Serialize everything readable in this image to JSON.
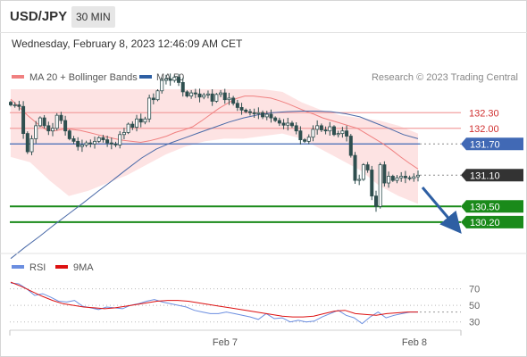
{
  "header": {
    "symbol": "USD/JPY",
    "interval": "30 MIN"
  },
  "datetime": "Wednesday, February 8, 2023 12:46:09 AM CET",
  "legend": {
    "ma20": "MA 20 + Bollinger Bands",
    "ma50": "MA 50",
    "rsi": "RSI",
    "ma9": "9MA",
    "credit": "Research © 2023 Trading Central"
  },
  "colors": {
    "bollinger_band": "#fcd9d9",
    "ma20": "#f08080",
    "ma50": "#4a6aa8",
    "candle": "#2f4f4f",
    "pivot": "#4169b5",
    "resistance": "#f2a0a0",
    "support": "#1a8a1a",
    "last": "#333333",
    "rsi": "#6b8ee0",
    "ma9": "#dd1111",
    "arrow": "#2e5fa3"
  },
  "chart_data": [
    {
      "type": "candlestick",
      "title": "USD/JPY",
      "ylim": [
        129.7,
        132.75
      ],
      "x_ticks": [
        "Feb 7",
        "Feb 8"
      ],
      "levels": [
        {
          "label": "132.30",
          "value": 132.3,
          "kind": "resistance"
        },
        {
          "label": "132.00",
          "value": 132.0,
          "kind": "resistance"
        },
        {
          "label": "131.70",
          "value": 131.7,
          "kind": "pivot"
        },
        {
          "label": "131.10",
          "value": 131.1,
          "kind": "last"
        },
        {
          "label": "130.50",
          "value": 130.5,
          "kind": "support"
        },
        {
          "label": "130.20",
          "value": 130.2,
          "kind": "support"
        }
      ],
      "close": [
        132.45,
        132.45,
        132.42,
        131.9,
        131.55,
        131.8,
        132.05,
        132.2,
        132.05,
        131.95,
        132.0,
        132.25,
        132.15,
        131.95,
        131.8,
        131.75,
        131.65,
        131.68,
        131.72,
        131.7,
        131.75,
        131.82,
        131.78,
        131.72,
        131.7,
        131.68,
        131.88,
        131.92,
        132.08,
        132.02,
        132.18,
        132.12,
        132.18,
        132.58,
        132.55,
        132.72,
        132.92,
        132.95,
        132.92,
        132.98,
        132.88,
        132.7,
        132.62,
        132.68,
        132.66,
        132.6,
        132.64,
        132.66,
        132.52,
        132.65,
        132.68,
        132.55,
        132.58,
        132.48,
        132.4,
        132.35,
        132.32,
        132.3,
        132.28,
        132.3,
        132.22,
        132.27,
        132.2,
        132.15,
        132.1,
        132.06,
        132.1,
        132.05,
        131.95,
        131.78,
        131.75,
        131.83,
        131.98,
        132.05,
        131.97,
        131.95,
        132.03,
        131.88,
        131.9,
        131.95,
        131.85,
        131.48,
        131.0,
        131.02,
        131.3,
        131.2,
        130.7,
        130.5,
        131.3,
        130.95,
        131.08,
        131.0,
        131.05,
        131.08,
        131.05,
        131.04,
        131.07,
        131.1
      ],
      "ma20": [
        132.56,
        132.4,
        132.24,
        132.1,
        131.98,
        131.95,
        131.98,
        131.98,
        131.96,
        131.92,
        131.88,
        131.84,
        131.8,
        131.77,
        131.75,
        131.73,
        131.76,
        131.8,
        131.85,
        131.92,
        131.97,
        132.03,
        132.14,
        132.26,
        132.38,
        132.48,
        132.57,
        132.62,
        132.62,
        132.6,
        132.58,
        132.53,
        132.47,
        132.4,
        132.33,
        132.27,
        132.2,
        132.15,
        132.1,
        132.05,
        132.0,
        131.9,
        131.8,
        131.7,
        131.58,
        131.45,
        131.33,
        131.22
      ],
      "ma50": [
        129.5,
        129.72,
        129.93,
        130.15,
        130.36,
        130.57,
        130.79,
        131.0,
        131.22,
        131.43,
        131.6,
        131.72,
        131.82,
        131.92,
        132.02,
        132.12,
        132.2,
        132.26,
        132.3,
        132.32,
        132.33,
        132.33,
        132.32,
        132.28,
        132.22,
        132.11,
        132.0,
        131.88,
        131.8
      ],
      "bollinger_upper": [
        133.15,
        133.05,
        133.0,
        132.95,
        132.88,
        132.8,
        132.8,
        132.85,
        132.9,
        133.0,
        133.05,
        133.1,
        133.0,
        132.9,
        132.7,
        132.5,
        132.35,
        132.25,
        132.2,
        132.15,
        132.05,
        131.9
      ],
      "bollinger_lower": [
        131.45,
        131.35,
        131.0,
        130.7,
        130.8,
        130.95,
        131.1,
        131.3,
        131.5,
        131.65,
        131.75,
        131.8,
        131.8,
        131.85,
        131.9,
        131.8,
        131.6,
        131.4,
        131.2,
        130.9,
        130.7,
        130.55
      ]
    },
    {
      "type": "line",
      "title": "RSI",
      "ylim": [
        20,
        90
      ],
      "y_ticks": [
        "70",
        "50",
        "30"
      ],
      "series": [
        {
          "name": "RSI",
          "values": [
            77,
            76,
            70,
            62,
            64,
            60,
            55,
            54,
            56,
            49,
            47,
            45,
            48,
            47,
            46,
            50,
            52,
            55,
            57,
            54,
            52,
            50,
            48,
            44,
            42,
            40,
            40,
            42,
            40,
            38,
            36,
            33,
            40,
            34,
            35,
            30,
            32,
            30,
            31,
            36,
            40,
            44,
            38,
            35,
            28,
            36,
            42,
            35,
            38,
            40,
            42,
            42
          ]
        },
        {
          "name": "9MA",
          "values": [
            78,
            73,
            67,
            61,
            56,
            52,
            50,
            48,
            47,
            46,
            47,
            49,
            51,
            53,
            55,
            56,
            56,
            55,
            53,
            51,
            49,
            47,
            45,
            43,
            41,
            39,
            37,
            36,
            36,
            37,
            40,
            43,
            44,
            40,
            39,
            38,
            40,
            41,
            42,
            42
          ]
        }
      ]
    }
  ]
}
